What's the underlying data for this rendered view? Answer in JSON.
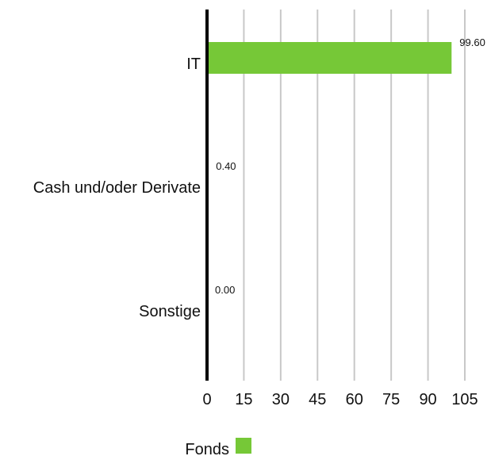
{
  "chart_data": {
    "type": "bar",
    "orientation": "horizontal",
    "categories": [
      "IT",
      "Cash und/oder Derivate",
      "Sonstige"
    ],
    "series": [
      {
        "name": "Fonds",
        "values": [
          99.6,
          0.4,
          0.0
        ],
        "value_labels": [
          "99.60",
          "0.40",
          "0.00"
        ],
        "color": "#76c837"
      }
    ],
    "x_ticks": [
      0,
      15,
      30,
      45,
      60,
      75,
      90,
      105
    ],
    "xlim": [
      0,
      105
    ],
    "grid": true,
    "grid_color": "#c8c8c8",
    "axis_color": "#000000",
    "legend_position": "bottom-center"
  }
}
